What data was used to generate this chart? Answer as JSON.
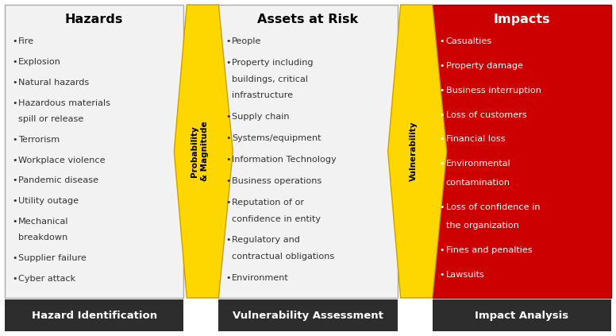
{
  "col1_title": "Hazards",
  "col1_items": [
    "Fire",
    "Explosion",
    "Natural hazards",
    "Hazardous materials\nspill or release",
    "Terrorism",
    "Workplace violence",
    "Pandemic disease",
    "Utility outage",
    "Mechanical\nbreakdown",
    "Supplier failure",
    "Cyber attack"
  ],
  "col1_footer": "Hazard Identification",
  "col1_bg": "#f2f2f2",
  "col1_header_color": "#000000",
  "col1_text_color": "#333333",
  "arrow1_label": "Probability\n& Magnitude",
  "arrow1_color": "#FFD700",
  "arrow1_border": "#C8A000",
  "col2_title": "Assets at Risk",
  "col2_items": [
    "People",
    "Property including\nbuildings, critical\ninfrastructure",
    "Supply chain",
    "Systems/equipment",
    "Information Technology",
    "Business operations",
    "Reputation of or\nconfidence in entity",
    "Regulatory and\ncontractual obligations",
    "Environment"
  ],
  "col2_footer": "Vulnerability Assessment",
  "col2_bg": "#f2f2f2",
  "col2_header_color": "#000000",
  "col2_text_color": "#333333",
  "arrow2_label": "Vulnerability",
  "arrow2_color": "#FFD700",
  "arrow2_border": "#C8A000",
  "col3_title": "Impacts",
  "col3_items": [
    "Casualties",
    "Property damage",
    "Business interruption",
    "Loss of customers",
    "Financial loss",
    "Environmental\ncontamination",
    "Loss of confidence in\nthe organization",
    "Fines and penalties",
    "Lawsuits"
  ],
  "col3_footer": "Impact Analysis",
  "col3_bg": "#CC0000",
  "col3_header_color": "#FFFFFF",
  "col3_text_color": "#FFFFFF",
  "footer_bg": "#2d2d2d",
  "footer_text_color": "#FFFFFF",
  "background": "#FFFFFF",
  "arrow_text_color": "#000000",
  "fig_w": 7.76,
  "fig_h": 4.23,
  "dpi": 100
}
